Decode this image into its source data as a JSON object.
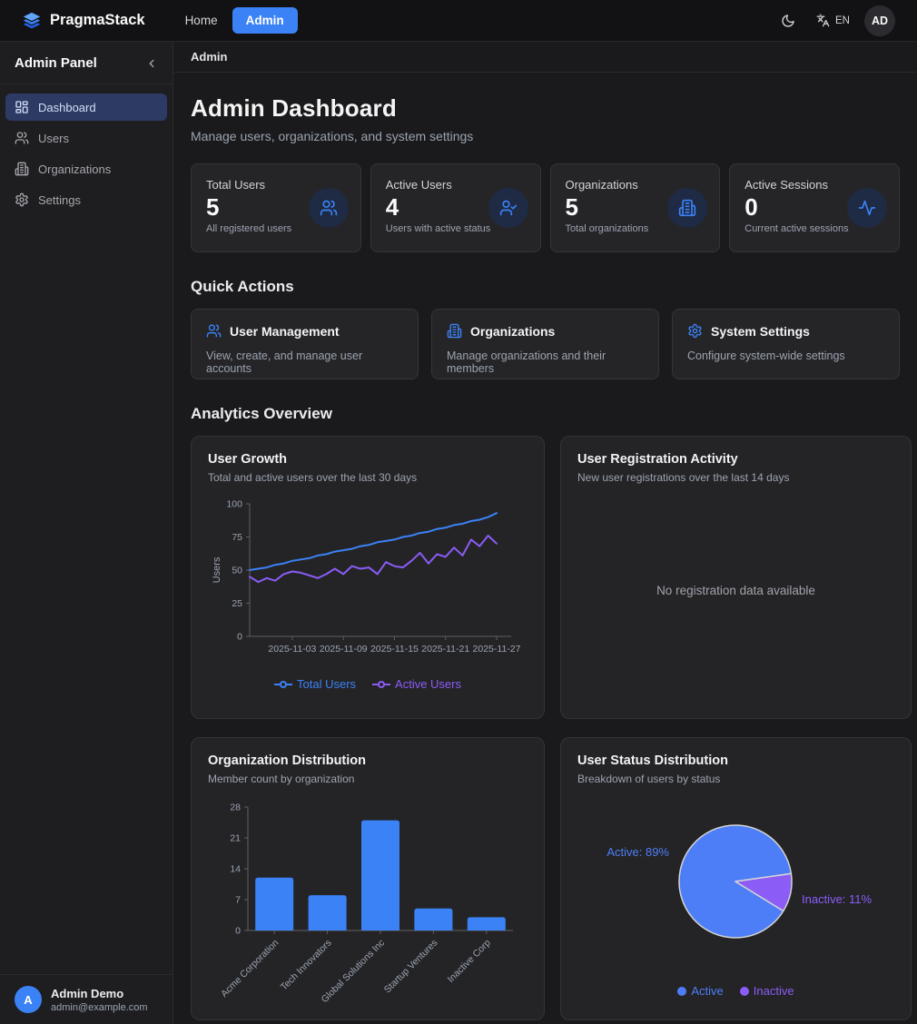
{
  "theme": {
    "accent": "#3b82f6",
    "purple": "#8b5cf6",
    "active_sidebar_bg": "#2d3a64"
  },
  "navbar": {
    "brand": "PragmaStack",
    "brand_icon": "layers-icon",
    "links": [
      {
        "label": "Home",
        "active": false
      },
      {
        "label": "Admin",
        "active": true
      }
    ],
    "theme_icon": "moon-icon",
    "language_icon": "translate-icon",
    "language": "EN",
    "avatar_initials": "AD"
  },
  "sidebar": {
    "title": "Admin Panel",
    "collapse_icon": "chevron-left-icon",
    "items": [
      {
        "label": "Dashboard",
        "icon": "dashboard-icon",
        "active": true
      },
      {
        "label": "Users",
        "icon": "users-icon",
        "active": false
      },
      {
        "label": "Organizations",
        "icon": "building-icon",
        "active": false
      },
      {
        "label": "Settings",
        "icon": "gear-icon",
        "active": false
      }
    ],
    "user": {
      "initial": "A",
      "name": "Admin Demo",
      "email": "admin@example.com"
    }
  },
  "breadcrumb": "Admin",
  "header": {
    "title": "Admin Dashboard",
    "subtitle": "Manage users, organizations, and system settings"
  },
  "stats": [
    {
      "label": "Total Users",
      "value": "5",
      "description": "All registered users",
      "icon": "users-icon"
    },
    {
      "label": "Active Users",
      "value": "4",
      "description": "Users with active status",
      "icon": "user-check-icon"
    },
    {
      "label": "Organizations",
      "value": "5",
      "description": "Total organizations",
      "icon": "building-icon"
    },
    {
      "label": "Active Sessions",
      "value": "0",
      "description": "Current active sessions",
      "icon": "activity-icon"
    }
  ],
  "quick_actions": {
    "heading": "Quick Actions",
    "cards": [
      {
        "title": "User Management",
        "description": "View, create, and manage user accounts",
        "icon": "users-icon"
      },
      {
        "title": "Organizations",
        "description": "Manage organizations and their members",
        "icon": "building-icon"
      },
      {
        "title": "System Settings",
        "description": "Configure system-wide settings",
        "icon": "gear-icon"
      }
    ]
  },
  "analytics_heading": "Analytics Overview",
  "chart_data": [
    {
      "type": "line",
      "title": "User Growth",
      "subtitle": "Total and active users over the last 30 days",
      "xlabel": "",
      "ylabel": "Users",
      "ylim": [
        0,
        100
      ],
      "yticks": [
        0,
        25,
        50,
        75,
        100
      ],
      "n_points": 30,
      "x_start": "2025-10-29",
      "x_tick_labels": [
        "2025-11-03",
        "2025-11-09",
        "2025-11-15",
        "2025-11-21",
        "2025-11-27"
      ],
      "x_tick_indices": [
        5,
        11,
        17,
        23,
        29
      ],
      "grid": false,
      "legend_position": "bottom",
      "series": [
        {
          "name": "Total Users",
          "color": "#3b82f6",
          "values": [
            50,
            51,
            52,
            54,
            55,
            57,
            58,
            59,
            61,
            62,
            64,
            65,
            66,
            68,
            69,
            71,
            72,
            73,
            75,
            76,
            78,
            79,
            81,
            82,
            84,
            85,
            87,
            88,
            90,
            93
          ]
        },
        {
          "name": "Active Users",
          "color": "#8b5cf6",
          "values": [
            45,
            41,
            44,
            42,
            47,
            49,
            48,
            46,
            44,
            47,
            51,
            47,
            53,
            51,
            52,
            47,
            56,
            53,
            52,
            57,
            63,
            55,
            62,
            60,
            67,
            61,
            73,
            68,
            76,
            70
          ]
        }
      ]
    },
    {
      "type": "line",
      "title": "User Registration Activity",
      "subtitle": "New user registrations over the last 14 days",
      "series": [],
      "empty_text": "No registration data available"
    },
    {
      "type": "bar",
      "title": "Organization Distribution",
      "subtitle": "Member count by organization",
      "categories": [
        "Acme Corporation",
        "Tech Innovators",
        "Global Solutions Inc",
        "Startup Ventures",
        "Inactive Corp"
      ],
      "values": [
        12,
        8,
        25,
        5,
        3
      ],
      "ylim": [
        0,
        28
      ],
      "yticks": [
        0,
        7,
        14,
        21,
        28
      ],
      "bar_color": "#3b82f6",
      "grid": false
    },
    {
      "type": "pie",
      "title": "User Status Distribution",
      "subtitle": "Breakdown of users by status",
      "slices": [
        {
          "label": "Active",
          "pct": 89,
          "color": "#4d7ef7",
          "point_label": "Active: 89%"
        },
        {
          "label": "Inactive",
          "pct": 11,
          "color": "#8b5cf6",
          "point_label": "Inactive: 11%"
        }
      ],
      "legend_position": "bottom"
    }
  ]
}
